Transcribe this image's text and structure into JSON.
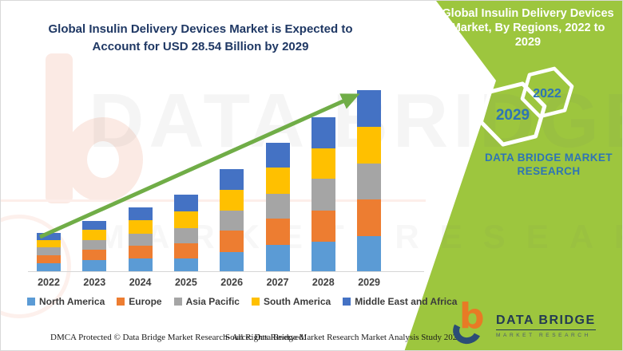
{
  "header": {
    "title": "Global Insulin Delivery Devices Market is Expected to Account for USD 28.54 Billion by 2029"
  },
  "banner": {
    "title": "Global Insulin Delivery Devices Market, By Regions, 2022 to 2029"
  },
  "hexagons": [
    {
      "label": "2029"
    },
    {
      "label": "2022"
    }
  ],
  "brand": {
    "name": "DATA BRIDGE MARKET RESEARCH"
  },
  "watermark": {
    "line1": "DATA BRIDGE",
    "line2": "MARKET RESEARCH"
  },
  "logo": {
    "title": "DATA BRIDGE",
    "subtitle": "MARKET RESEARCH",
    "glyph": "b"
  },
  "footer": {
    "left": "DMCA Protected © Data Bridge Market Research- All Rights Reserved.",
    "source": "Source: Data Bridge Market Research Market Analysis Study 2022"
  },
  "colors": {
    "background_green": "#9dc63e",
    "title_navy": "#1f3864",
    "accent_blue": "#2e74b5",
    "arrow_green": "#70ad47",
    "banner_text": "#ffffff",
    "axis_text": "#404040"
  },
  "chart_data": {
    "type": "bar",
    "stacked": true,
    "title": "Global Insulin Delivery Devices Market, By Regions, 2022 to 2029",
    "unit": "USD Billion",
    "categories": [
      "2022",
      "2023",
      "2024",
      "2025",
      "2026",
      "2027",
      "2028",
      "2029"
    ],
    "series": [
      {
        "name": "North America",
        "color": "#5B9BD5",
        "values": [
          1.3,
          1.72,
          2.01,
          1.95,
          3.05,
          4.19,
          4.6,
          5.57
        ]
      },
      {
        "name": "Europe",
        "color": "#ED7D31",
        "values": [
          1.26,
          1.63,
          1.97,
          2.43,
          3.36,
          4.11,
          4.95,
          5.74
        ]
      },
      {
        "name": "Asia Pacific",
        "color": "#A5A5A5",
        "values": [
          1.26,
          1.6,
          1.92,
          2.43,
          3.14,
          3.85,
          5.03,
          5.66
        ]
      },
      {
        "name": "South America",
        "color": "#FFC000",
        "values": [
          1.13,
          1.55,
          2.1,
          2.65,
          3.22,
          4.2,
          4.81,
          5.78
        ]
      },
      {
        "name": "Middle East and Africa",
        "color": "#4472C4",
        "values": [
          1.13,
          1.38,
          2.1,
          2.64,
          3.36,
          3.9,
          4.9,
          5.79
        ]
      }
    ],
    "totals": [
      6.08,
      7.88,
      10.1,
      12.1,
      16.13,
      20.25,
      24.29,
      28.54
    ],
    "highlight_total": {
      "year": "2029",
      "value_usd_billion": 28.54
    },
    "ylim": [
      0,
      30
    ],
    "grid": false,
    "y_axis_visible": false,
    "legend_position": "bottom",
    "trend_arrow": true
  }
}
